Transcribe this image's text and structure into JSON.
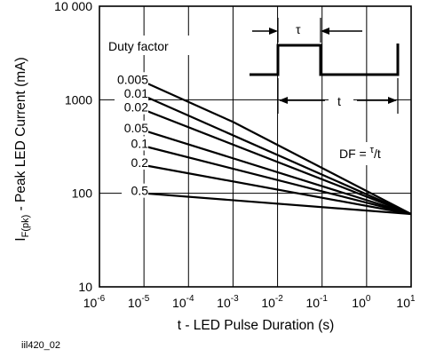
{
  "chart_data": {
    "type": "line",
    "x_scale": "log",
    "y_scale": "log",
    "xlim": [
      1e-06,
      10
    ],
    "ylim": [
      10,
      10000
    ],
    "grid": true,
    "xlabel": "t - LED Pulse Duration (s)",
    "ylabel": {
      "main": "I",
      "sub": "F(pk)",
      "rest": " - Peak LED Current (mA)"
    },
    "x_ticks": [
      {
        "value": 1e-06,
        "base": "10",
        "exp": "-6"
      },
      {
        "value": 1e-05,
        "base": "10",
        "exp": "-5"
      },
      {
        "value": 0.0001,
        "base": "10",
        "exp": "-4"
      },
      {
        "value": 0.001,
        "base": "10",
        "exp": "-3"
      },
      {
        "value": 0.01,
        "base": "10",
        "exp": "-2"
      },
      {
        "value": 0.1,
        "base": "10",
        "exp": "-1"
      },
      {
        "value": 1,
        "base": "10",
        "exp": "0"
      },
      {
        "value": 10,
        "base": "10",
        "exp": "1"
      }
    ],
    "y_ticks": [
      {
        "value": 10,
        "label": "10"
      },
      {
        "value": 100,
        "label": "100"
      },
      {
        "value": 1000,
        "label": "1000"
      },
      {
        "value": 10000,
        "label": "10 000"
      }
    ],
    "legend_title": "Duty factor",
    "series": [
      {
        "name": "0.005",
        "points": [
          [
            1e-05,
            1550
          ],
          [
            0.001,
            580
          ],
          [
            10,
            60
          ]
        ]
      },
      {
        "name": "0.01",
        "points": [
          [
            1e-05,
            1100
          ],
          [
            10,
            60
          ]
        ]
      },
      {
        "name": "0.02",
        "points": [
          [
            1e-05,
            780
          ],
          [
            10,
            60
          ]
        ]
      },
      {
        "name": "0.05",
        "points": [
          [
            1e-05,
            470
          ],
          [
            10,
            60
          ]
        ]
      },
      {
        "name": "0.1",
        "points": [
          [
            1e-05,
            320
          ],
          [
            10,
            60
          ]
        ]
      },
      {
        "name": "0.2",
        "points": [
          [
            1e-05,
            200
          ],
          [
            10,
            60
          ]
        ]
      },
      {
        "name": "0.5",
        "points": [
          [
            1e-05,
            100
          ],
          [
            10,
            60
          ]
        ]
      }
    ],
    "inset": {
      "tau_symbol": "τ",
      "t_symbol": "t",
      "formula": {
        "lhs": "DF = ",
        "num": "τ",
        "slash": "/",
        "den": "t"
      }
    }
  },
  "figure_id": "iil420_02"
}
